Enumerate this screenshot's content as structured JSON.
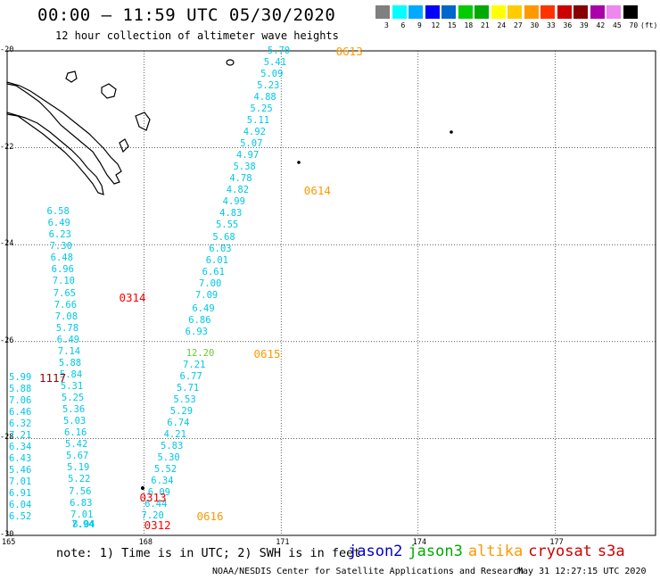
{
  "header": {
    "title": "00:00 – 11:59 UTC 05/30/2020",
    "subtitle": "12 hour collection of altimeter wave heights"
  },
  "scale": {
    "unit": "(ft)",
    "labels": [
      "3",
      "6",
      "9",
      "12",
      "15",
      "18",
      "21",
      "24",
      "27",
      "30",
      "33",
      "36",
      "39",
      "42",
      "45",
      "70"
    ],
    "colors": [
      "#808080",
      "#00ffff",
      "#00aaff",
      "#0000ff",
      "#0066cc",
      "#00cc00",
      "#00aa00",
      "#ffff00",
      "#ffcc00",
      "#ff9900",
      "#ff3300",
      "#cc0000",
      "#880000",
      "#aa00aa",
      "#ee88ee",
      "#000000"
    ]
  },
  "axes": {
    "x_ticks": [
      "165",
      "168",
      "171",
      "174",
      "177"
    ],
    "y_ticks": [
      "-20",
      "-22",
      "-24",
      "-26",
      "-28",
      "-30"
    ]
  },
  "map": {
    "lon_range": [
      165,
      178
    ],
    "lat_range": [
      -30,
      -20
    ]
  },
  "tracks": [
    {
      "satellite": "jason2",
      "color": "#00c8e6",
      "points": [
        {
          "lon": 170.7,
          "lat": -20.0,
          "v": "5.70"
        },
        {
          "lon": 170.62,
          "lat": -20.24,
          "v": "5.41"
        },
        {
          "lon": 170.55,
          "lat": -20.48,
          "v": "5.09"
        },
        {
          "lon": 170.47,
          "lat": -20.72,
          "v": "5.23"
        },
        {
          "lon": 170.4,
          "lat": -20.96,
          "v": "4.88"
        },
        {
          "lon": 170.32,
          "lat": -21.2,
          "v": "5.25"
        },
        {
          "lon": 170.25,
          "lat": -21.44,
          "v": "5.11"
        },
        {
          "lon": 170.17,
          "lat": -21.68,
          "v": "4.92"
        },
        {
          "lon": 170.1,
          "lat": -21.92,
          "v": "5.07"
        },
        {
          "lon": 170.02,
          "lat": -22.16,
          "v": "4.97"
        },
        {
          "lon": 169.95,
          "lat": -22.4,
          "v": "5.38"
        },
        {
          "lon": 169.87,
          "lat": -22.64,
          "v": "4.78"
        },
        {
          "lon": 169.8,
          "lat": -22.88,
          "v": "4.82"
        },
        {
          "lon": 169.72,
          "lat": -23.12,
          "v": "4.99"
        },
        {
          "lon": 169.65,
          "lat": -23.36,
          "v": "4.83"
        },
        {
          "lon": 169.57,
          "lat": -23.6,
          "v": "5.55"
        },
        {
          "lon": 169.5,
          "lat": -23.84,
          "v": "5.68"
        },
        {
          "lon": 169.42,
          "lat": -24.08,
          "v": "6.03"
        },
        {
          "lon": 169.35,
          "lat": -24.32,
          "v": "6.01"
        },
        {
          "lon": 169.27,
          "lat": -24.56,
          "v": "6.61"
        },
        {
          "lon": 169.2,
          "lat": -24.8,
          "v": "7.00"
        },
        {
          "lon": 169.12,
          "lat": -25.04,
          "v": "7.09"
        },
        {
          "lon": 169.05,
          "lat": -25.32,
          "v": "6.49"
        },
        {
          "lon": 168.97,
          "lat": -25.56,
          "v": "6.86"
        },
        {
          "lon": 168.9,
          "lat": -25.8,
          "v": "6.93"
        },
        {
          "lon": 168.92,
          "lat": -26.24,
          "v": "12.20",
          "color": "#66cc33"
        },
        {
          "lon": 168.85,
          "lat": -26.48,
          "v": "7.21"
        },
        {
          "lon": 168.78,
          "lat": -26.72,
          "v": "6.77"
        },
        {
          "lon": 168.71,
          "lat": -26.96,
          "v": "5.71"
        },
        {
          "lon": 168.64,
          "lat": -27.2,
          "v": "5.53"
        },
        {
          "lon": 168.57,
          "lat": -27.44,
          "v": "5.29"
        },
        {
          "lon": 168.5,
          "lat": -27.68,
          "v": "6.74"
        },
        {
          "lon": 168.43,
          "lat": -27.92,
          "v": "4.21"
        },
        {
          "lon": 168.36,
          "lat": -28.16,
          "v": "5.83"
        },
        {
          "lon": 168.29,
          "lat": -28.4,
          "v": "5.30"
        },
        {
          "lon": 168.22,
          "lat": -28.64,
          "v": "5.52"
        },
        {
          "lon": 168.15,
          "lat": -28.88,
          "v": "6.34"
        },
        {
          "lon": 168.08,
          "lat": -29.12,
          "v": "6.09"
        },
        {
          "lon": 168.01,
          "lat": -29.36,
          "v": "6.44"
        },
        {
          "lon": 167.94,
          "lat": -29.6,
          "v": "7.20"
        }
      ]
    },
    {
      "satellite": "jason2",
      "color": "#00c8e6",
      "points": [
        {
          "lon": 165.87,
          "lat": -23.32,
          "v": "6.58"
        },
        {
          "lon": 165.89,
          "lat": -23.56,
          "v": "6.49"
        },
        {
          "lon": 165.91,
          "lat": -23.8,
          "v": "6.23"
        },
        {
          "lon": 165.93,
          "lat": -24.04,
          "v": "7.30"
        },
        {
          "lon": 165.95,
          "lat": -24.28,
          "v": "6.48"
        },
        {
          "lon": 165.97,
          "lat": -24.52,
          "v": "6.96"
        },
        {
          "lon": 165.99,
          "lat": -24.76,
          "v": "7.10"
        },
        {
          "lon": 166.01,
          "lat": -25.0,
          "v": "7.65"
        },
        {
          "lon": 166.03,
          "lat": -25.24,
          "v": "7.66"
        },
        {
          "lon": 166.05,
          "lat": -25.48,
          "v": "7.08"
        },
        {
          "lon": 166.07,
          "lat": -25.72,
          "v": "5.78"
        },
        {
          "lon": 166.09,
          "lat": -25.96,
          "v": "6.49"
        },
        {
          "lon": 166.11,
          "lat": -26.2,
          "v": "7.14"
        },
        {
          "lon": 166.13,
          "lat": -26.44,
          "v": "5.88"
        },
        {
          "lon": 166.15,
          "lat": -26.68,
          "v": "5.84"
        },
        {
          "lon": 166.17,
          "lat": -26.92,
          "v": "5.31"
        },
        {
          "lon": 166.19,
          "lat": -27.16,
          "v": "5.25"
        },
        {
          "lon": 166.21,
          "lat": -27.4,
          "v": "5.36"
        },
        {
          "lon": 166.23,
          "lat": -27.64,
          "v": "5.03"
        },
        {
          "lon": 166.25,
          "lat": -27.88,
          "v": "6.16"
        },
        {
          "lon": 166.27,
          "lat": -28.12,
          "v": "5.42"
        },
        {
          "lon": 166.29,
          "lat": -28.36,
          "v": "5.67"
        },
        {
          "lon": 166.31,
          "lat": -28.6,
          "v": "5.19"
        },
        {
          "lon": 166.33,
          "lat": -28.84,
          "v": "5.22"
        },
        {
          "lon": 166.35,
          "lat": -29.1,
          "v": "7.56"
        },
        {
          "lon": 166.37,
          "lat": -29.34,
          "v": "6.83"
        },
        {
          "lon": 166.39,
          "lat": -29.58,
          "v": "7.01"
        },
        {
          "lon": 166.41,
          "lat": -29.82,
          "v": "7.94"
        },
        {
          "lon": 166.43,
          "lat": -30.0,
          "v": "8.04"
        }
      ]
    },
    {
      "satellite": "jason2",
      "color": "#00c8e6",
      "points": [
        {
          "lon": 163.33,
          "lat": -26.74,
          "v": "5.99"
        },
        {
          "lon": 163.38,
          "lat": -26.98,
          "v": "5.88"
        },
        {
          "lon": 163.43,
          "lat": -27.22,
          "v": "7.06"
        },
        {
          "lon": 163.48,
          "lat": -27.46,
          "v": "6.46"
        },
        {
          "lon": 163.53,
          "lat": -27.7,
          "v": "6.32"
        },
        {
          "lon": 163.58,
          "lat": -27.94,
          "v": "7.21"
        },
        {
          "lon": 163.63,
          "lat": -28.18,
          "v": "6.34"
        },
        {
          "lon": 163.68,
          "lat": -28.42,
          "v": "6.43"
        },
        {
          "lon": 163.73,
          "lat": -28.66,
          "v": "5.46"
        },
        {
          "lon": 163.78,
          "lat": -28.9,
          "v": "7.01"
        },
        {
          "lon": 163.83,
          "lat": -29.14,
          "v": "6.91"
        },
        {
          "lon": 163.88,
          "lat": -29.38,
          "v": "6.04"
        },
        {
          "lon": 163.93,
          "lat": -29.62,
          "v": "6.52"
        }
      ]
    }
  ],
  "passes": [
    {
      "label": "0613",
      "lon": 172.2,
      "lat": -20.0,
      "color": "#ff9900"
    },
    {
      "label": "0614",
      "lon": 171.5,
      "lat": -22.88,
      "color": "#ff9900"
    },
    {
      "label": "0615",
      "lon": 170.4,
      "lat": -26.24,
      "color": "#ff9900"
    },
    {
      "label": "0616",
      "lon": 169.15,
      "lat": -29.6,
      "color": "#ff9900"
    },
    {
      "label": "0314",
      "lon": 167.45,
      "lat": -25.08,
      "color": "#ff0000"
    },
    {
      "label": "0313",
      "lon": 167.9,
      "lat": -29.2,
      "color": "#ff0000"
    },
    {
      "label": "0312",
      "lon": 168.0,
      "lat": -30.0,
      "color": "#ff0000"
    },
    {
      "label": "1117",
      "lon": 164.55,
      "lat": -26.74,
      "color": "#990000"
    }
  ],
  "footer": {
    "note": "note: 1) Time is in UTC; 2) SWH is in feet",
    "legend": [
      {
        "name": "jason2",
        "color": "#0000cc"
      },
      {
        "name": "jason3",
        "color": "#00aa00"
      },
      {
        "name": "altika",
        "color": "#ff9900"
      },
      {
        "name": "cryosat",
        "color": "#cc0000"
      },
      {
        "name": "s3a",
        "color": "#cc0000"
      }
    ],
    "credit": "NOAA/NESDIS Center for Satellite Applications and Research",
    "timestamp": "May 31 12:27:15 UTC 2020"
  }
}
